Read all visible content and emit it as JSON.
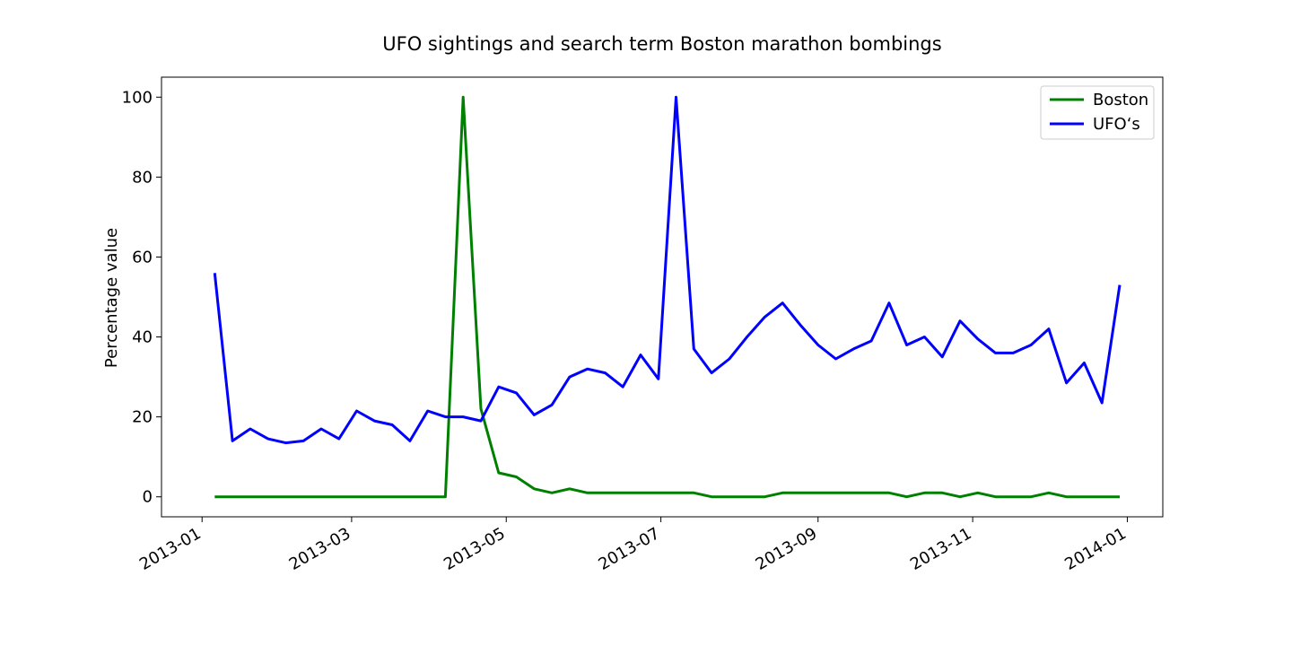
{
  "chart_data": {
    "type": "line",
    "title": "UFO sightings and search term Boston marathon bombings",
    "xlabel": "",
    "ylabel": "Percentage value",
    "ylim": [
      -5,
      105
    ],
    "xlim": [
      "2012-12-16",
      "2014-01-15"
    ],
    "grid": false,
    "legend": "top-right",
    "y_ticks": [
      0,
      20,
      40,
      60,
      80,
      100
    ],
    "x_ticks": [
      "2013-01",
      "2013-03",
      "2013-05",
      "2013-07",
      "2013-09",
      "2013-11",
      "2014-01"
    ],
    "x": [
      "2013-01-06",
      "2013-01-13",
      "2013-01-20",
      "2013-01-27",
      "2013-02-03",
      "2013-02-10",
      "2013-02-17",
      "2013-02-24",
      "2013-03-03",
      "2013-03-10",
      "2013-03-17",
      "2013-03-24",
      "2013-03-31",
      "2013-04-07",
      "2013-04-14",
      "2013-04-21",
      "2013-04-28",
      "2013-05-05",
      "2013-05-12",
      "2013-05-19",
      "2013-05-26",
      "2013-06-02",
      "2013-06-09",
      "2013-06-16",
      "2013-06-23",
      "2013-06-30",
      "2013-07-07",
      "2013-07-14",
      "2013-07-21",
      "2013-07-28",
      "2013-08-04",
      "2013-08-11",
      "2013-08-18",
      "2013-08-25",
      "2013-09-01",
      "2013-09-08",
      "2013-09-15",
      "2013-09-22",
      "2013-09-29",
      "2013-10-06",
      "2013-10-13",
      "2013-10-20",
      "2013-10-27",
      "2013-11-03",
      "2013-11-10",
      "2013-11-17",
      "2013-11-24",
      "2013-12-01",
      "2013-12-08",
      "2013-12-15",
      "2013-12-22",
      "2013-12-29"
    ],
    "series": [
      {
        "name": "Boston",
        "color": "#008000",
        "values": [
          0,
          0,
          0,
          0,
          0,
          0,
          0,
          0,
          0,
          0,
          0,
          0,
          0,
          0,
          100,
          22,
          6,
          5,
          2,
          1,
          2,
          1,
          1,
          1,
          1,
          1,
          1,
          1,
          0,
          0,
          0,
          0,
          1,
          1,
          1,
          1,
          1,
          1,
          1,
          0,
          1,
          1,
          0,
          1,
          0,
          0,
          0,
          1,
          0,
          0,
          0,
          0
        ]
      },
      {
        "name": "UFO‘s",
        "color": "#0000ff",
        "values": [
          56,
          14,
          17,
          14.5,
          13.5,
          14,
          17,
          14.5,
          21.5,
          19,
          18,
          14,
          21.5,
          20,
          20,
          19,
          27.5,
          26,
          20.5,
          23,
          30,
          32,
          31,
          27.5,
          35.5,
          29.5,
          100,
          37,
          31,
          34.5,
          40,
          45,
          48.5,
          43,
          38,
          34.5,
          37,
          39,
          48.5,
          38,
          40,
          35,
          44,
          39.5,
          36,
          36,
          38,
          42,
          28.5,
          33.5,
          23.5,
          53
        ]
      }
    ]
  }
}
